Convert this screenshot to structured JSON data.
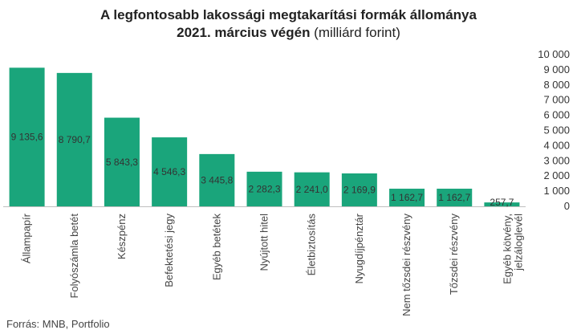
{
  "title_line1": "A legfontosabb lakossági megtakarítási formák állománya",
  "title_line2_bold": "2021. március végén",
  "title_line2_rest": " (milliárd forint)",
  "source": "Forrás: MNB, Portfolio",
  "colors": {
    "bar": "#1aa57b",
    "axis": "#bfbfbf",
    "text": "#333333"
  },
  "chart_data": {
    "type": "bar",
    "title": "A legfontosabb lakossági megtakarítási formák állománya 2021. március végén (milliárd forint)",
    "categories": [
      "Állampapír",
      "Folyószámla betét",
      "Készpénz",
      "Befektetési jegy",
      "Egyéb betétek",
      "Nyújtott hitel",
      "Életbiztosítás",
      "Nyugdíjpénztár",
      "Nem tőzsdei részvény",
      "Tőzsdei részvény",
      "Egyéb kötvény, jelzáloglevél"
    ],
    "values": [
      9135.6,
      8790.7,
      5843.3,
      4546.3,
      3445.8,
      2282.3,
      2241.0,
      2169.9,
      1162.7,
      1162.7,
      257.7
    ],
    "value_labels": [
      "9 135,6",
      "8 790,7",
      "5 843,3",
      "4 546,3",
      "3 445,8",
      "2 282,3",
      "2 241,0",
      "2 169,9",
      "1 162,7",
      "1 162,7",
      "257,7"
    ],
    "yticks": [
      0,
      1000,
      2000,
      3000,
      4000,
      5000,
      6000,
      7000,
      8000,
      9000,
      10000
    ],
    "ytick_labels": [
      "0",
      "1 000",
      "2 000",
      "3 000",
      "4 000",
      "5 000",
      "6 000",
      "7 000",
      "8 000",
      "9 000",
      "10 000"
    ],
    "ylim": [
      0,
      10000
    ],
    "y_axis_side": "right",
    "grid": false,
    "legend": "none"
  }
}
